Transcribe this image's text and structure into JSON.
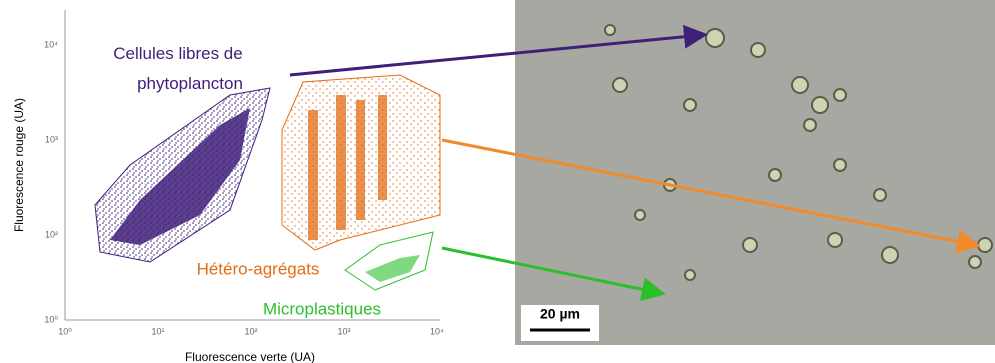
{
  "plot": {
    "y_axis_label": "Fluorescence rouge (UA)",
    "x_axis_label": "Fluorescence verte (UA)",
    "y_tick_labels": [
      "10⁴",
      "10³",
      "10²",
      "10⁰"
    ],
    "x_tick_labels": [
      "10⁰",
      "10¹",
      "10²",
      "10³",
      "10⁴"
    ],
    "gates": [
      {
        "label": "Cellules libres de phytoplancton",
        "color": "#3f1f7a"
      },
      {
        "label": "Hétéro-agrégats",
        "color": "#e36c14"
      },
      {
        "label": "Microplastiques",
        "color": "#2bbf2b"
      }
    ]
  },
  "image": {
    "scale_bar": "20 µm"
  }
}
